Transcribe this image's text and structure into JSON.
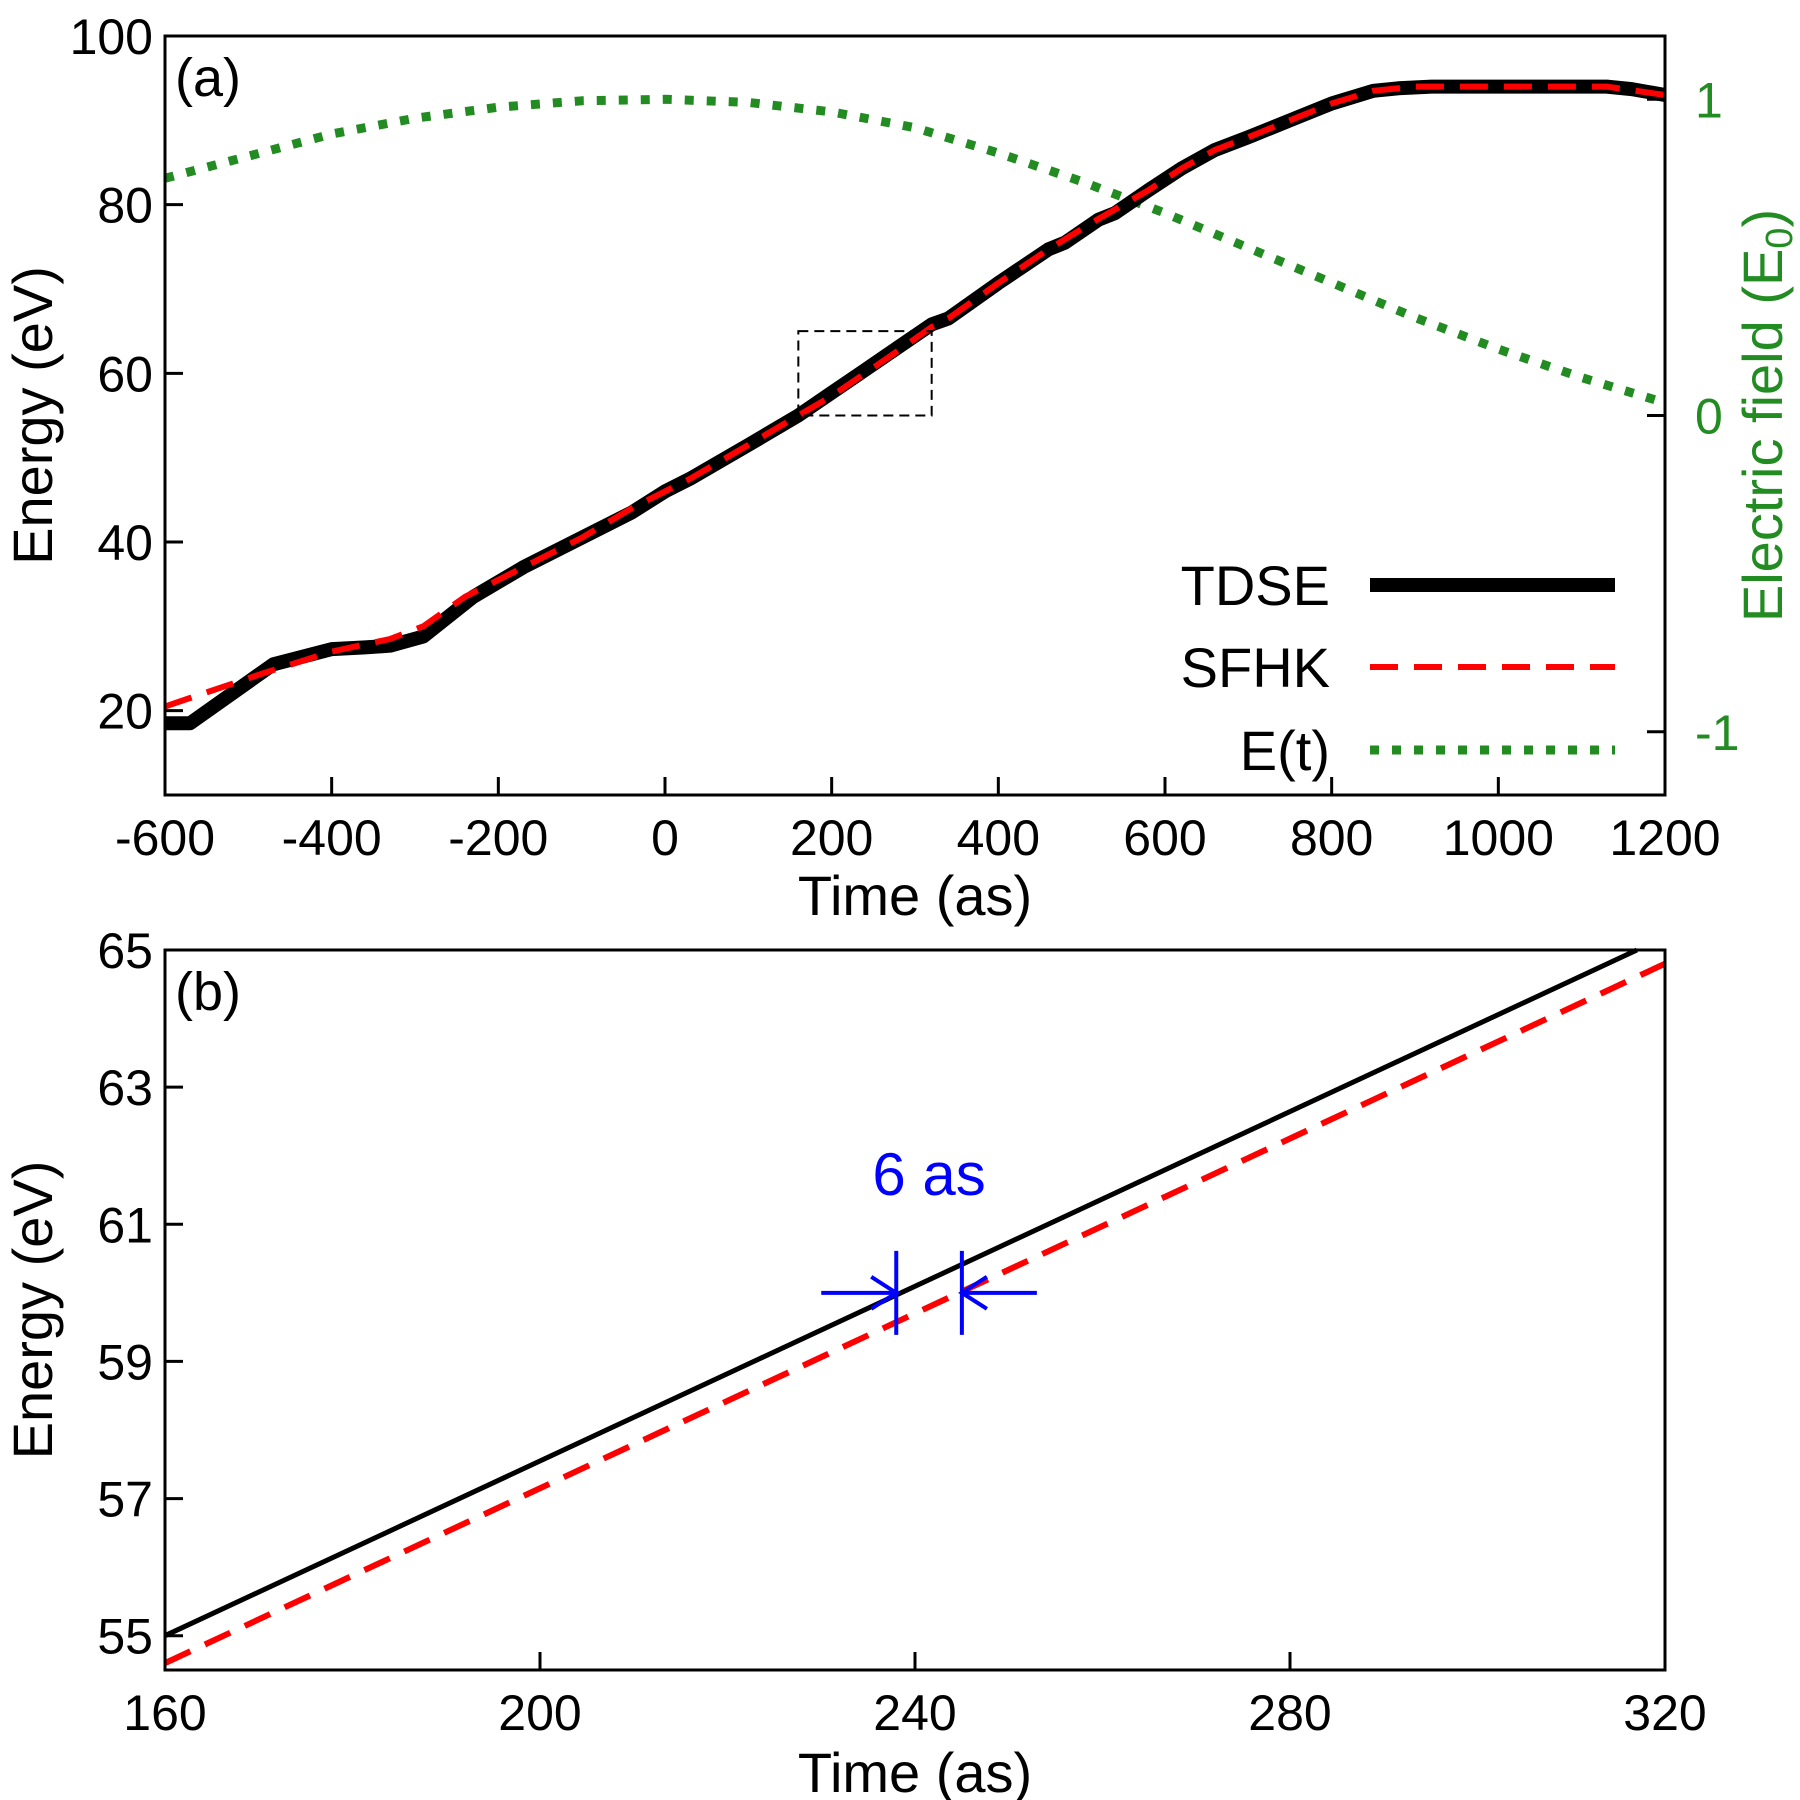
{
  "colors": {
    "tdse": "#000000",
    "sfhk": "#ff0000",
    "field": "#228B22",
    "annotation": "#0000ff",
    "axis": "#000000"
  },
  "chart_data": [
    {
      "panel_label": "(a)",
      "type": "line",
      "xlabel": "Time (as)",
      "ylabel": "Energy (eV)",
      "y2label_main": "Electric field (E",
      "y2label_sub": "0",
      "y2label_end": ")",
      "xlim": [
        -600,
        1200
      ],
      "ylim": [
        10,
        100
      ],
      "y2lim": [
        -1.2,
        1.2
      ],
      "xticks": [
        -600,
        -400,
        -200,
        0,
        200,
        400,
        600,
        800,
        1000,
        1200
      ],
      "yticks": [
        20,
        40,
        60,
        80,
        100
      ],
      "y2ticks": [
        1,
        0,
        -1
      ],
      "legend": {
        "placement": "bottom-right",
        "entries": [
          "TDSE",
          "SFHK",
          "E(t)"
        ]
      },
      "inset_box": {
        "x": [
          160,
          320
        ],
        "y": [
          55,
          65
        ]
      },
      "series": [
        {
          "name": "TDSE",
          "style": "solid-thick",
          "x": [
            -600,
            -570,
            -470,
            -400,
            -360,
            -330,
            -290,
            -230,
            -170,
            -100,
            -40,
            0,
            30,
            100,
            160,
            200,
            240,
            280,
            320,
            340,
            400,
            460,
            480,
            520,
            540,
            580,
            620,
            660,
            700,
            750,
            800,
            850,
            880,
            920,
            980,
            1000,
            1060,
            1130,
            1160,
            1200
          ],
          "y": [
            18.5,
            18.5,
            25.5,
            27.3,
            27.5,
            27.7,
            28.8,
            33.5,
            37.0,
            40.5,
            43.5,
            46.0,
            47.5,
            51.5,
            55.0,
            57.7,
            60.4,
            63.1,
            65.8,
            66.5,
            70.7,
            74.7,
            75.5,
            78.2,
            79.0,
            81.7,
            84.3,
            86.5,
            88.0,
            90.0,
            92.0,
            93.5,
            93.8,
            94.0,
            94.0,
            94.0,
            94.0,
            94.0,
            93.7,
            93.0
          ]
        },
        {
          "name": "SFHK",
          "style": "dashed",
          "x": [
            -600,
            -570,
            -480,
            -400,
            -330,
            -290,
            -240,
            -170,
            -100,
            -40,
            0,
            30,
            100,
            160,
            200,
            240,
            280,
            320,
            340,
            400,
            460,
            520,
            580,
            620,
            660,
            700,
            750,
            800,
            850,
            900,
            960,
            1000,
            1060,
            1130,
            1200
          ],
          "y": [
            20.5,
            21.5,
            24.5,
            27.0,
            28.5,
            30.0,
            33.5,
            37.0,
            40.5,
            44.0,
            46.0,
            47.5,
            51.5,
            55.0,
            57.3,
            60.0,
            62.7,
            65.5,
            66.5,
            70.7,
            74.7,
            78.3,
            81.7,
            84.3,
            86.5,
            88.0,
            90.0,
            92.0,
            93.5,
            94.0,
            94.0,
            94.0,
            94.0,
            94.0,
            93.0
          ]
        },
        {
          "name": "E(t)",
          "style": "dotted",
          "axis": "y2",
          "x": [
            -600,
            -500,
            -400,
            -300,
            -200,
            -100,
            0,
            100,
            200,
            300,
            400,
            500,
            600,
            700,
            800,
            900,
            1000,
            1100,
            1200
          ],
          "y": [
            0.75,
            0.82,
            0.89,
            0.94,
            0.975,
            0.995,
            1.0,
            0.99,
            0.96,
            0.91,
            0.83,
            0.74,
            0.64,
            0.53,
            0.42,
            0.31,
            0.21,
            0.12,
            0.04
          ]
        }
      ]
    },
    {
      "panel_label": "(b)",
      "type": "line",
      "xlabel": "Time (as)",
      "ylabel": "Energy (eV)",
      "xlim": [
        160,
        320
      ],
      "ylim": [
        54.5,
        65
      ],
      "xticks": [
        160,
        200,
        240,
        280,
        320
      ],
      "yticks": [
        55,
        57,
        59,
        61,
        63,
        65
      ],
      "annotation": {
        "text": "6 as",
        "t_start": 238,
        "t_end": 245,
        "energy": 60
      },
      "series": [
        {
          "name": "TDSE",
          "style": "solid",
          "x": [
            160,
            317
          ],
          "y": [
            55.0,
            65.0
          ]
        },
        {
          "name": "SFHK",
          "style": "dashed",
          "x": [
            160,
            320
          ],
          "y": [
            54.6,
            64.8
          ]
        }
      ]
    }
  ]
}
